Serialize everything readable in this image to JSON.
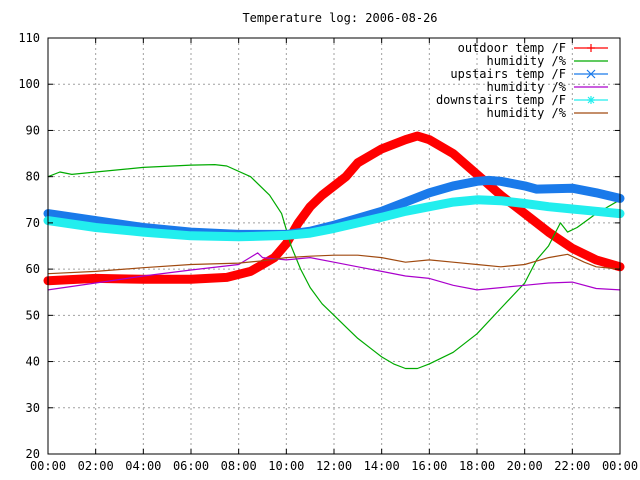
{
  "chart_data": {
    "type": "line",
    "title": "Temperature log: 2006-08-26",
    "xlabel": "",
    "ylabel": "",
    "xlim": [
      0,
      24
    ],
    "ylim": [
      20,
      110
    ],
    "grid": true,
    "legend_position": "top-right",
    "x_ticks": [
      "00:00",
      "02:00",
      "04:00",
      "06:00",
      "08:00",
      "10:00",
      "12:00",
      "14:00",
      "16:00",
      "18:00",
      "20:00",
      "22:00",
      "00:00"
    ],
    "y_ticks": [
      "20",
      "30",
      "40",
      "50",
      "60",
      "70",
      "80",
      "90",
      "100",
      "110"
    ],
    "series": [
      {
        "name": "outdoor temp /F",
        "color": "#ff0000",
        "marker": "plus",
        "thick": true,
        "points": [
          [
            0,
            57.5
          ],
          [
            2,
            58
          ],
          [
            4,
            57.8
          ],
          [
            6,
            57.8
          ],
          [
            7.5,
            58.2
          ],
          [
            8.5,
            59.5
          ],
          [
            9.5,
            62.5
          ],
          [
            10,
            65.5
          ],
          [
            10.5,
            70
          ],
          [
            11,
            73.5
          ],
          [
            11.5,
            76
          ],
          [
            12,
            78
          ],
          [
            12.5,
            80
          ],
          [
            13,
            83
          ],
          [
            14,
            86
          ],
          [
            15,
            88
          ],
          [
            15.5,
            88.8
          ],
          [
            16,
            88
          ],
          [
            17,
            85
          ],
          [
            18,
            80.5
          ],
          [
            19,
            76
          ],
          [
            20,
            72
          ],
          [
            21,
            68
          ],
          [
            22,
            64.5
          ],
          [
            23,
            62
          ],
          [
            24,
            60.5
          ]
        ]
      },
      {
        "name": "humidity /%",
        "color": "#00aa00",
        "marker": "none",
        "thick": false,
        "points": [
          [
            0,
            80
          ],
          [
            0.5,
            81
          ],
          [
            1,
            80.5
          ],
          [
            2,
            81
          ],
          [
            4,
            82
          ],
          [
            6,
            82.5
          ],
          [
            7,
            82.6
          ],
          [
            7.5,
            82.3
          ],
          [
            8.5,
            80
          ],
          [
            9.3,
            76
          ],
          [
            9.8,
            72
          ],
          [
            10.2,
            65
          ],
          [
            10.6,
            60
          ],
          [
            11,
            56
          ],
          [
            11.5,
            52.5
          ],
          [
            12,
            50
          ],
          [
            12.5,
            47.5
          ],
          [
            13,
            45
          ],
          [
            13.5,
            43
          ],
          [
            14,
            41
          ],
          [
            14.5,
            39.5
          ],
          [
            15,
            38.5
          ],
          [
            15.5,
            38.5
          ],
          [
            16,
            39.5
          ],
          [
            17,
            42
          ],
          [
            18,
            46
          ],
          [
            19,
            51.5
          ],
          [
            20,
            57
          ],
          [
            20.5,
            62
          ],
          [
            21,
            65
          ],
          [
            21.5,
            70
          ],
          [
            21.8,
            68
          ],
          [
            22.2,
            69
          ],
          [
            23,
            72
          ],
          [
            24,
            75
          ]
        ]
      },
      {
        "name": "upstairs temp /F",
        "color": "#1a7aea",
        "marker": "x",
        "thick": true,
        "points": [
          [
            0,
            72
          ],
          [
            2,
            70.5
          ],
          [
            4,
            69
          ],
          [
            6,
            68
          ],
          [
            8,
            67.5
          ],
          [
            10,
            67.5
          ],
          [
            11,
            68.2
          ],
          [
            12,
            69.5
          ],
          [
            13,
            71
          ],
          [
            14,
            72.5
          ],
          [
            15,
            74.5
          ],
          [
            16,
            76.5
          ],
          [
            17,
            78
          ],
          [
            18,
            79
          ],
          [
            18.5,
            79.2
          ],
          [
            19,
            79
          ],
          [
            20,
            78
          ],
          [
            20.5,
            77.3
          ],
          [
            22,
            77.5
          ],
          [
            23,
            76.5
          ],
          [
            24,
            75.3
          ]
        ]
      },
      {
        "name": "humidity /%",
        "color": "#aa00cc",
        "marker": "none",
        "thick": false,
        "points": [
          [
            0,
            55.5
          ],
          [
            2,
            57
          ],
          [
            4,
            58.5
          ],
          [
            6,
            59.8
          ],
          [
            8,
            61
          ],
          [
            8.8,
            63.5
          ],
          [
            9,
            62.5
          ],
          [
            10,
            62
          ],
          [
            11,
            62.5
          ],
          [
            12,
            61.5
          ],
          [
            13,
            60.5
          ],
          [
            14,
            59.5
          ],
          [
            15,
            58.5
          ],
          [
            16,
            58
          ],
          [
            17,
            56.5
          ],
          [
            18,
            55.5
          ],
          [
            19,
            56
          ],
          [
            20,
            56.5
          ],
          [
            21,
            57
          ],
          [
            22,
            57.2
          ],
          [
            23,
            55.8
          ],
          [
            24,
            55.5
          ]
        ]
      },
      {
        "name": "downstairs temp /F",
        "color": "#22eeee",
        "marker": "star",
        "thick": true,
        "points": [
          [
            0,
            70.5
          ],
          [
            2,
            69
          ],
          [
            4,
            68
          ],
          [
            6,
            67.2
          ],
          [
            8,
            67
          ],
          [
            10,
            67.3
          ],
          [
            11,
            67.8
          ],
          [
            12,
            68.8
          ],
          [
            13,
            70
          ],
          [
            14,
            71.2
          ],
          [
            15,
            72.5
          ],
          [
            16,
            73.5
          ],
          [
            17,
            74.5
          ],
          [
            18,
            75
          ],
          [
            19,
            74.8
          ],
          [
            20,
            74.2
          ],
          [
            21,
            73.5
          ],
          [
            22,
            73
          ],
          [
            23,
            72.5
          ],
          [
            24,
            72
          ]
        ]
      },
      {
        "name": "humidity /%",
        "color": "#a04a10",
        "marker": "none",
        "thick": false,
        "points": [
          [
            0,
            59
          ],
          [
            2,
            59.5
          ],
          [
            4,
            60.3
          ],
          [
            6,
            61
          ],
          [
            8,
            61.3
          ],
          [
            9,
            61.8
          ],
          [
            10,
            62.5
          ],
          [
            11,
            62.8
          ],
          [
            12,
            63
          ],
          [
            13,
            63
          ],
          [
            14,
            62.5
          ],
          [
            15,
            61.5
          ],
          [
            16,
            62
          ],
          [
            17,
            61.5
          ],
          [
            18,
            61
          ],
          [
            19,
            60.5
          ],
          [
            20,
            61
          ],
          [
            21,
            62.5
          ],
          [
            21.8,
            63.2
          ],
          [
            22.5,
            61.5
          ],
          [
            23,
            60.5
          ],
          [
            24,
            60
          ]
        ]
      }
    ]
  }
}
